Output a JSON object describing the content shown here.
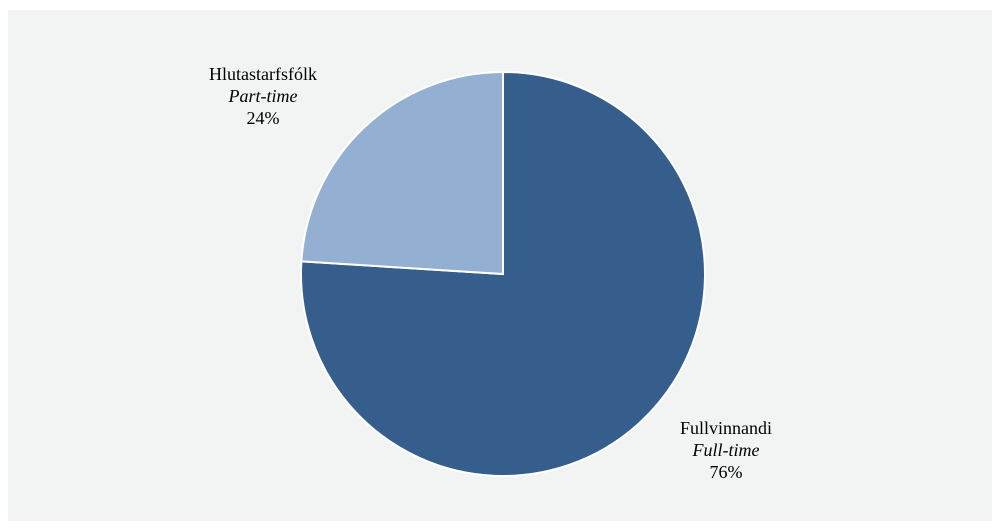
{
  "chart_data": {
    "type": "pie",
    "title": "",
    "start_angle_deg": 0,
    "direction": "clockwise",
    "slices": [
      {
        "label": "Fullvinnandi",
        "label_en": "Full-time",
        "value": 76,
        "value_label": "76%",
        "color": "#355e8d",
        "label_position": "bottom-right"
      },
      {
        "label": "Hlutastarfsfólk",
        "label_en": "Part-time",
        "value": 24,
        "value_label": "24%",
        "color": "#93afd2",
        "label_position": "top-left"
      }
    ],
    "slice_border_color": "#ffffff",
    "background_color": "#f2f4f4",
    "legend": "none"
  }
}
